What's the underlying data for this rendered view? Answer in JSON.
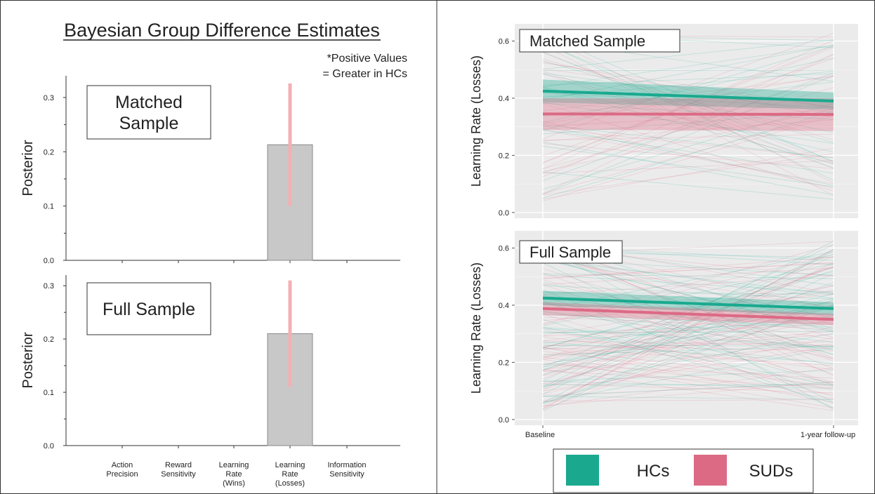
{
  "chart_data": [
    {
      "type": "bar",
      "title": "Bayesian Group Difference Estimates",
      "note": [
        "*Positive Values",
        "= Greater in HCs"
      ],
      "categories": [
        [
          "Action",
          "Precision"
        ],
        [
          "Reward",
          "Sensitivity"
        ],
        [
          "Learning",
          "Rate",
          "(Wins)"
        ],
        [
          "Learning",
          "Rate",
          "(Losses)"
        ],
        [
          "Information",
          "Sensitivity"
        ]
      ],
      "ylabel": "Posterior",
      "panels": [
        {
          "label": [
            "Matched",
            "Sample"
          ],
          "ylim": [
            0,
            0.34
          ],
          "yticks": [
            0.0,
            0.1,
            0.2,
            0.3
          ],
          "ytick_labels": [
            "0.0",
            "0.1",
            "0.2",
            "0.3"
          ],
          "values": [
            0,
            0,
            0,
            0.213,
            0
          ],
          "interval": [
            0.1,
            0.326
          ]
        },
        {
          "label": [
            "Full Sample"
          ],
          "ylim": [
            0,
            0.32
          ],
          "yticks": [
            0.0,
            0.1,
            0.2,
            0.3
          ],
          "ytick_labels": [
            "0.0",
            "0.1",
            "0.2",
            "0.3"
          ],
          "values": [
            0,
            0,
            0,
            0.21,
            0
          ],
          "interval": [
            0.11,
            0.31
          ]
        }
      ]
    },
    {
      "type": "line",
      "x": [
        "Baseline",
        "1-year follow-up"
      ],
      "ylabel": "Learning Rate (Losses)",
      "ylim": [
        -0.02,
        0.66
      ],
      "yticks": [
        0.0,
        0.2,
        0.4,
        0.6
      ],
      "ytick_labels": [
        "0.0",
        "0.2",
        "0.4",
        "0.6"
      ],
      "grid": true,
      "panels": [
        {
          "label": "Matched Sample",
          "series": [
            {
              "name": "HCs",
              "values": [
                0.425,
                0.39
              ],
              "ci": [
                [
                  0.385,
                  0.465
                ],
                [
                  0.36,
                  0.42
                ]
              ]
            },
            {
              "name": "SUDs",
              "values": [
                0.345,
                0.343
              ],
              "ci": [
                [
                  0.29,
                  0.4
                ],
                [
                  0.285,
                  0.4
                ]
              ]
            }
          ]
        },
        {
          "label": "Full Sample",
          "series": [
            {
              "name": "HCs",
              "values": [
                0.425,
                0.388
              ],
              "ci": [
                [
                  0.4,
                  0.45
                ],
                [
                  0.365,
                  0.41
                ]
              ]
            },
            {
              "name": "SUDs",
              "values": [
                0.388,
                0.35
              ],
              "ci": [
                [
                  0.365,
                  0.41
                ],
                [
                  0.33,
                  0.37
                ]
              ]
            }
          ]
        }
      ],
      "legend": {
        "placement": "bottom",
        "items": [
          {
            "name": "HCs",
            "color": "#1aa98f"
          },
          {
            "name": "SUDs",
            "color": "#dc6a85"
          }
        ]
      }
    }
  ],
  "colors": {
    "bar": "#c8c8c8",
    "interval": "#f4b0b4",
    "hcs": "#1aa98f",
    "suds": "#dc6a85",
    "panel_bg": "#ebebeb",
    "grid": "#ffffff"
  }
}
